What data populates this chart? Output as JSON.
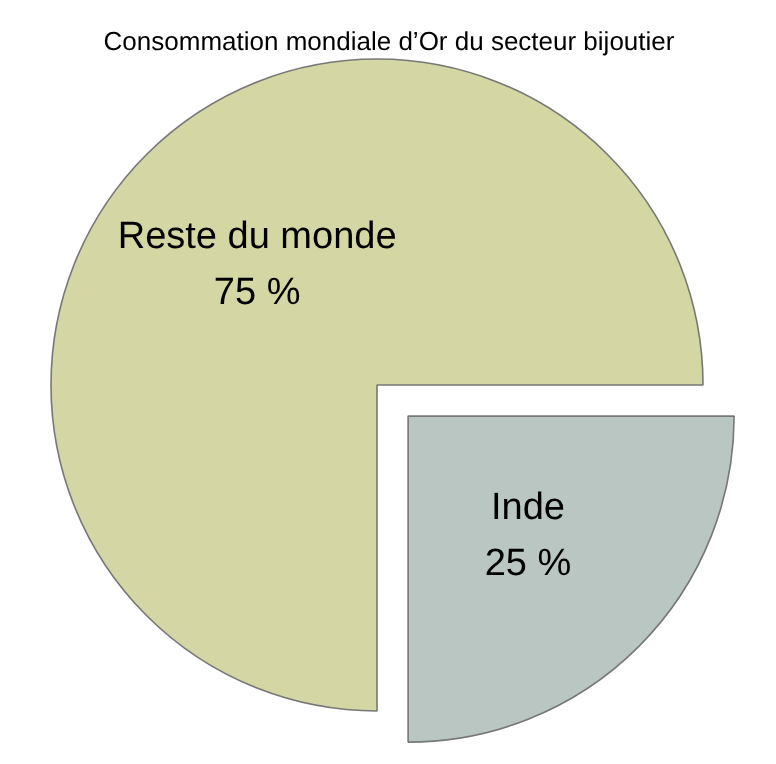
{
  "chart_data": {
    "type": "pie",
    "title": "Consommation mondiale d’Or du secteur bijoutier",
    "categories": [
      "Reste du monde",
      "Inde"
    ],
    "values": [
      75,
      25
    ],
    "colors": [
      "#d4d6a4",
      "#b9c6c2"
    ],
    "value_labels": [
      "75 %",
      "25 %"
    ]
  }
}
